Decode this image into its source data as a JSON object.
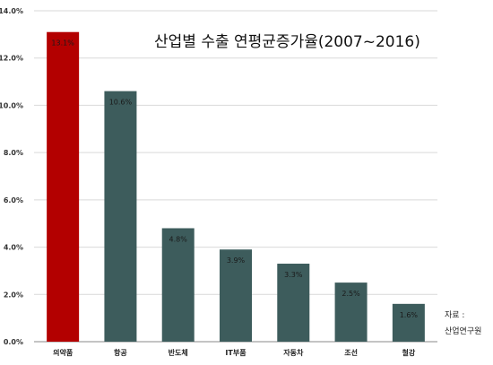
{
  "chart_data": {
    "type": "bar",
    "title": "산업별 수출 연평균증가율(2007~2016)",
    "categories": [
      "의약품",
      "항공",
      "반도체",
      "IT부품",
      "자동차",
      "조선",
      "철강"
    ],
    "values": [
      13.1,
      10.6,
      4.8,
      3.9,
      3.3,
      2.5,
      1.6
    ],
    "data_labels": [
      "13.1%",
      "10.6%",
      "4.8%",
      "3.9%",
      "3.3%",
      "2.5%",
      "1.6%"
    ],
    "yticks": [
      "0.0%",
      "2.0%",
      "4.0%",
      "6.0%",
      "8.0%",
      "10.0%",
      "12.0%",
      "14.0%"
    ],
    "ylim": [
      0,
      14
    ],
    "grid": true,
    "legend": "none",
    "colors": {
      "highlight": "#b30000",
      "bar": "#3d5c5c",
      "grid": "#d9d9d9",
      "axis": "#888888"
    }
  },
  "source": {
    "label": "자료 :",
    "name": "산업연구원"
  }
}
